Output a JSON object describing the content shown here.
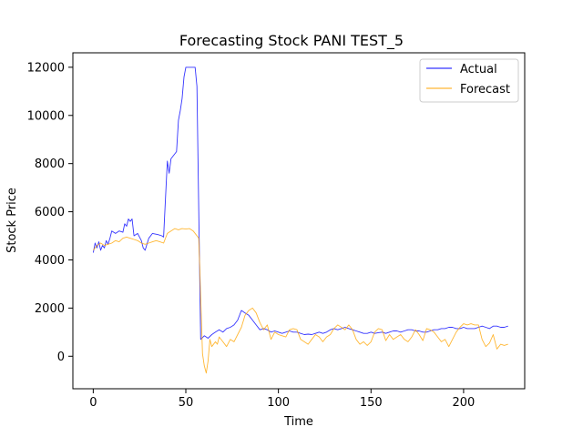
{
  "chart_data": {
    "type": "line",
    "title": "Forecasting Stock PANI TEST_5",
    "xlabel": "Time",
    "ylabel": "Stock Price",
    "xlim": [
      -11,
      233
    ],
    "ylim": [
      -1350,
      12600
    ],
    "x_ticks": [
      0,
      50,
      100,
      150,
      200
    ],
    "y_ticks": [
      0,
      2000,
      4000,
      6000,
      8000,
      10000,
      12000
    ],
    "grid": false,
    "legend_position": "top-right",
    "series": [
      {
        "name": "Actual",
        "color": "#0000ff",
        "points": [
          [
            0,
            4300
          ],
          [
            1,
            4700
          ],
          [
            2,
            4500
          ],
          [
            3,
            4750
          ],
          [
            4,
            4400
          ],
          [
            5,
            4600
          ],
          [
            6,
            4500
          ],
          [
            7,
            4800
          ],
          [
            8,
            4650
          ],
          [
            9,
            4900
          ],
          [
            10,
            5200
          ],
          [
            12,
            5100
          ],
          [
            14,
            5200
          ],
          [
            16,
            5150
          ],
          [
            17,
            5500
          ],
          [
            18,
            5400
          ],
          [
            19,
            5700
          ],
          [
            20,
            5600
          ],
          [
            21,
            5700
          ],
          [
            22,
            5000
          ],
          [
            24,
            5100
          ],
          [
            26,
            4800
          ],
          [
            27,
            4500
          ],
          [
            28,
            4400
          ],
          [
            30,
            4900
          ],
          [
            32,
            5100
          ],
          [
            35,
            5050
          ],
          [
            37,
            5000
          ],
          [
            38,
            4950
          ],
          [
            39,
            6500
          ],
          [
            40,
            8100
          ],
          [
            41,
            7600
          ],
          [
            42,
            8200
          ],
          [
            44,
            8400
          ],
          [
            45,
            8500
          ],
          [
            46,
            9800
          ],
          [
            47,
            10200
          ],
          [
            48,
            10700
          ],
          [
            49,
            11600
          ],
          [
            50,
            12000
          ],
          [
            52,
            12000
          ],
          [
            55,
            12000
          ],
          [
            56,
            11200
          ],
          [
            57,
            6000
          ],
          [
            58,
            700
          ],
          [
            60,
            850
          ],
          [
            62,
            750
          ],
          [
            64,
            900
          ],
          [
            66,
            1000
          ],
          [
            68,
            1100
          ],
          [
            70,
            1000
          ],
          [
            72,
            1150
          ],
          [
            74,
            1200
          ],
          [
            76,
            1300
          ],
          [
            78,
            1500
          ],
          [
            80,
            1900
          ],
          [
            82,
            1800
          ],
          [
            84,
            1700
          ],
          [
            86,
            1500
          ],
          [
            88,
            1300
          ],
          [
            90,
            1100
          ],
          [
            92,
            1150
          ],
          [
            94,
            1100
          ],
          [
            96,
            1000
          ],
          [
            98,
            1050
          ],
          [
            100,
            1000
          ],
          [
            102,
            950
          ],
          [
            104,
            1000
          ],
          [
            106,
            1050
          ],
          [
            108,
            1000
          ],
          [
            110,
            1000
          ],
          [
            112,
            950
          ],
          [
            114,
            900
          ],
          [
            116,
            920
          ],
          [
            118,
            900
          ],
          [
            120,
            950
          ],
          [
            122,
            1000
          ],
          [
            124,
            950
          ],
          [
            126,
            1000
          ],
          [
            128,
            1100
          ],
          [
            130,
            1150
          ],
          [
            132,
            1100
          ],
          [
            134,
            1150
          ],
          [
            136,
            1200
          ],
          [
            138,
            1150
          ],
          [
            140,
            1100
          ],
          [
            142,
            1050
          ],
          [
            144,
            1000
          ],
          [
            146,
            950
          ],
          [
            148,
            950
          ],
          [
            150,
            1000
          ],
          [
            152,
            950
          ],
          [
            154,
            980
          ],
          [
            156,
            1000
          ],
          [
            158,
            950
          ],
          [
            160,
            1000
          ],
          [
            162,
            1050
          ],
          [
            164,
            1050
          ],
          [
            166,
            1000
          ],
          [
            168,
            1050
          ],
          [
            170,
            1100
          ],
          [
            172,
            1100
          ],
          [
            174,
            1050
          ],
          [
            176,
            1050
          ],
          [
            178,
            1000
          ],
          [
            180,
            1000
          ],
          [
            182,
            1050
          ],
          [
            184,
            1100
          ],
          [
            186,
            1100
          ],
          [
            188,
            1150
          ],
          [
            190,
            1150
          ],
          [
            192,
            1200
          ],
          [
            194,
            1200
          ],
          [
            196,
            1150
          ],
          [
            198,
            1150
          ],
          [
            200,
            1200
          ],
          [
            202,
            1150
          ],
          [
            204,
            1150
          ],
          [
            206,
            1150
          ],
          [
            208,
            1200
          ],
          [
            210,
            1250
          ],
          [
            212,
            1200
          ],
          [
            214,
            1150
          ],
          [
            216,
            1250
          ],
          [
            218,
            1250
          ],
          [
            220,
            1200
          ],
          [
            222,
            1200
          ],
          [
            224,
            1250
          ]
        ]
      },
      {
        "name": "Forecast",
        "color": "#ffa500",
        "points": [
          [
            0,
            4400
          ],
          [
            2,
            4600
          ],
          [
            4,
            4700
          ],
          [
            6,
            4600
          ],
          [
            8,
            4650
          ],
          [
            10,
            4700
          ],
          [
            12,
            4800
          ],
          [
            14,
            4750
          ],
          [
            16,
            4900
          ],
          [
            18,
            4950
          ],
          [
            20,
            4900
          ],
          [
            22,
            4850
          ],
          [
            24,
            4800
          ],
          [
            26,
            4700
          ],
          [
            28,
            4650
          ],
          [
            30,
            4700
          ],
          [
            32,
            4750
          ],
          [
            34,
            4800
          ],
          [
            36,
            4750
          ],
          [
            38,
            4700
          ],
          [
            40,
            5100
          ],
          [
            42,
            5200
          ],
          [
            44,
            5300
          ],
          [
            46,
            5250
          ],
          [
            48,
            5300
          ],
          [
            50,
            5280
          ],
          [
            52,
            5300
          ],
          [
            54,
            5200
          ],
          [
            56,
            5000
          ],
          [
            57,
            4900
          ],
          [
            58,
            2500
          ],
          [
            59,
            100
          ],
          [
            60,
            -400
          ],
          [
            61,
            -700
          ],
          [
            62,
            -200
          ],
          [
            63,
            700
          ],
          [
            64,
            400
          ],
          [
            66,
            600
          ],
          [
            67,
            500
          ],
          [
            68,
            800
          ],
          [
            70,
            600
          ],
          [
            72,
            400
          ],
          [
            74,
            700
          ],
          [
            76,
            600
          ],
          [
            78,
            900
          ],
          [
            80,
            1200
          ],
          [
            82,
            1700
          ],
          [
            84,
            1900
          ],
          [
            86,
            2000
          ],
          [
            88,
            1800
          ],
          [
            90,
            1400
          ],
          [
            92,
            1100
          ],
          [
            94,
            1300
          ],
          [
            96,
            700
          ],
          [
            98,
            1000
          ],
          [
            100,
            900
          ],
          [
            102,
            850
          ],
          [
            104,
            800
          ],
          [
            106,
            1100
          ],
          [
            108,
            1150
          ],
          [
            110,
            1100
          ],
          [
            112,
            700
          ],
          [
            114,
            600
          ],
          [
            116,
            500
          ],
          [
            118,
            700
          ],
          [
            120,
            900
          ],
          [
            122,
            800
          ],
          [
            124,
            600
          ],
          [
            126,
            800
          ],
          [
            128,
            900
          ],
          [
            130,
            1150
          ],
          [
            132,
            1300
          ],
          [
            134,
            1200
          ],
          [
            136,
            1100
          ],
          [
            138,
            1300
          ],
          [
            140,
            1100
          ],
          [
            142,
            700
          ],
          [
            144,
            500
          ],
          [
            146,
            600
          ],
          [
            148,
            450
          ],
          [
            150,
            600
          ],
          [
            152,
            1000
          ],
          [
            154,
            1150
          ],
          [
            156,
            1100
          ],
          [
            158,
            650
          ],
          [
            160,
            900
          ],
          [
            162,
            700
          ],
          [
            164,
            800
          ],
          [
            166,
            900
          ],
          [
            168,
            700
          ],
          [
            170,
            600
          ],
          [
            172,
            800
          ],
          [
            174,
            1100
          ],
          [
            176,
            900
          ],
          [
            178,
            650
          ],
          [
            180,
            1150
          ],
          [
            182,
            1100
          ],
          [
            184,
            1000
          ],
          [
            186,
            800
          ],
          [
            188,
            600
          ],
          [
            190,
            700
          ],
          [
            192,
            400
          ],
          [
            194,
            700
          ],
          [
            196,
            1000
          ],
          [
            198,
            1200
          ],
          [
            200,
            1350
          ],
          [
            202,
            1300
          ],
          [
            204,
            1350
          ],
          [
            206,
            1300
          ],
          [
            208,
            1300
          ],
          [
            210,
            700
          ],
          [
            212,
            400
          ],
          [
            214,
            550
          ],
          [
            216,
            900
          ],
          [
            218,
            300
          ],
          [
            220,
            500
          ],
          [
            222,
            450
          ],
          [
            224,
            500
          ]
        ]
      }
    ]
  }
}
